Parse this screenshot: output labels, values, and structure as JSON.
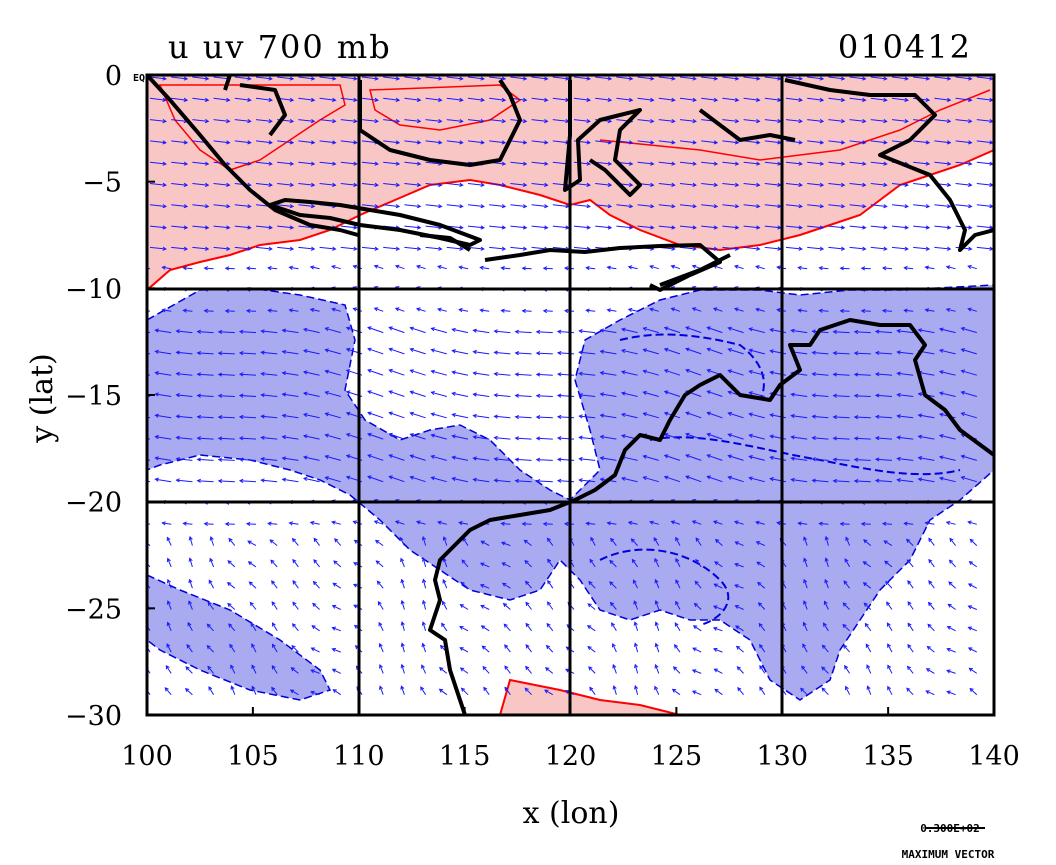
{
  "map": {
    "title_left": "u uv 700 mb",
    "title_right": "010412",
    "xlabel": "x (lon)",
    "ylabel": "y (lat)",
    "x_ticks": [
      "100",
      "105",
      "110",
      "115",
      "120",
      "125",
      "130",
      "135",
      "140"
    ],
    "y_ticks": [
      "0",
      "−5",
      "−10",
      "−15",
      "−20",
      "−25",
      "−30"
    ],
    "y_tick_suffix": "EQ",
    "lon_range": [
      100,
      140
    ],
    "lat_range": [
      -30,
      0
    ],
    "grid_lines_lon": [
      110,
      120,
      130
    ],
    "grid_lines_lat": [
      -10,
      -20
    ],
    "vector_legend": {
      "value": "0.300E+02",
      "label": "MAXIMUM VECTOR"
    },
    "colors": {
      "positive_fill": "#f9c6c6",
      "positive_line": "#ff0000",
      "negative_fill": "#a9aaf0",
      "negative_line": "#0000dd",
      "coastline": "#000000",
      "vector": "#1a1aff"
    }
  }
}
